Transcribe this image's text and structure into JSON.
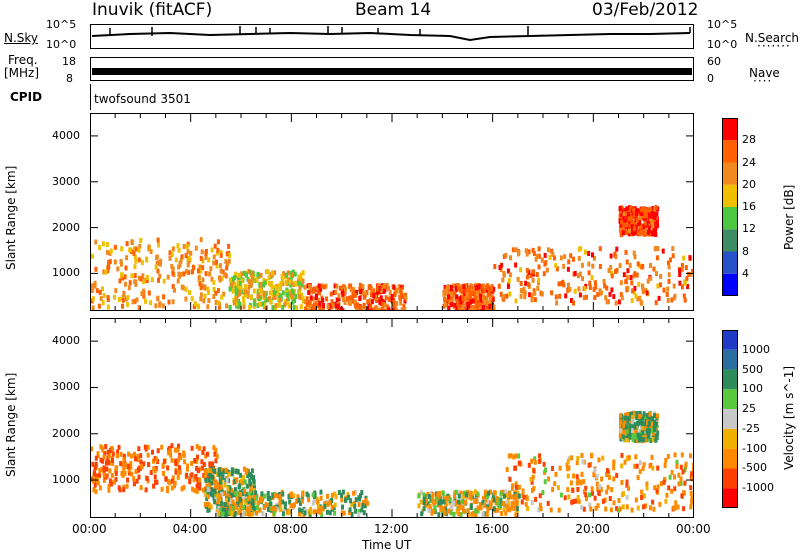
{
  "header": {
    "radar_title": "Inuvik (fitACF)",
    "beam": "Beam 14",
    "date": "03/Feb/2012"
  },
  "top_panels": {
    "nsky_label": "N.Sky",
    "nsearch_label": "N.Search",
    "nsky_tick_top": "10^5",
    "nsky_tick_bottom": "10^0",
    "nsearch_tick_top": "10^5",
    "nsearch_tick_bottom": "10^0",
    "freq_label_line1": "Freq.",
    "freq_label_line2": "[MHz]",
    "freq_tick_top": "18",
    "freq_tick_bottom": "8",
    "nave_label": "Nave",
    "nave_tick_top": "60",
    "nave_tick_bottom": "0",
    "cpid_label": "CPID",
    "cpid_value": "twofsound 3501"
  },
  "chart_data": [
    {
      "type": "heatmap",
      "title": "",
      "xlabel": "Time UT",
      "ylabel": "Slant Range [km]",
      "x_tick_labels": [
        "00:00",
        "04:00",
        "08:00",
        "12:00",
        "16:00",
        "20:00",
        "00:00"
      ],
      "x_range_hours": [
        0,
        24
      ],
      "y_range_km": [
        180,
        4500
      ],
      "y_ticks": [
        1000,
        2000,
        3000,
        4000
      ],
      "colorbar_label": "Power [dB]",
      "colorbar_ticks": [
        4,
        8,
        12,
        16,
        20,
        24,
        28
      ],
      "colorbar_range": [
        0,
        32
      ],
      "colors": [
        "#0000ff",
        "#2850c8",
        "#3d8c64",
        "#4cc840",
        "#f0c000",
        "#f08a20",
        "#ff6000",
        "#ff0000"
      ],
      "echo_regions": [
        {
          "t0": 0.0,
          "t1": 5.5,
          "r0": 300,
          "r1": 1800,
          "value": 22
        },
        {
          "t0": 5.5,
          "t1": 8.5,
          "r0": 300,
          "r1": 1100,
          "value": 18
        },
        {
          "t0": 8.5,
          "t1": 12.5,
          "r0": 200,
          "r1": 800,
          "value": 26
        },
        {
          "t0": 14.0,
          "t1": 16.0,
          "r0": 200,
          "r1": 800,
          "value": 26
        },
        {
          "t0": 16.0,
          "t1": 24.0,
          "r0": 400,
          "r1": 1600,
          "value": 24
        },
        {
          "t0": 21.0,
          "t1": 22.5,
          "r0": 1900,
          "r1": 2500,
          "value": 28
        }
      ]
    },
    {
      "type": "heatmap",
      "title": "",
      "xlabel": "Time UT",
      "ylabel": "Slant Range [km]",
      "x_tick_labels": [
        "00:00",
        "04:00",
        "08:00",
        "12:00",
        "16:00",
        "20:00",
        "00:00"
      ],
      "x_range_hours": [
        0,
        24
      ],
      "y_range_km": [
        180,
        4500
      ],
      "y_ticks": [
        1000,
        2000,
        3000,
        4000
      ],
      "colorbar_label": "Velocity [m s^-1]",
      "colorbar_ticks": [
        "1000",
        "500",
        "100",
        "25",
        "-25",
        "-100",
        "-500",
        "-1000"
      ],
      "colors": [
        "#1e3cc8",
        "#2a6ea0",
        "#2e8c5a",
        "#58c83c",
        "#c8c8c8",
        "#f0b000",
        "#ff8a00",
        "#ff4000",
        "#ff0000"
      ],
      "echo_regions": [
        {
          "t0": 0.0,
          "t1": 5.0,
          "r0": 800,
          "r1": 1800,
          "value": -500
        },
        {
          "t0": 4.5,
          "t1": 6.5,
          "r0": 300,
          "r1": 1300,
          "value": 100
        },
        {
          "t0": 5.0,
          "t1": 11.0,
          "r0": 300,
          "r1": 800,
          "value": 0
        },
        {
          "t0": 13.0,
          "t1": 17.0,
          "r0": 300,
          "r1": 800,
          "value": -100
        },
        {
          "t0": 16.5,
          "t1": 24.0,
          "r0": 400,
          "r1": 1600,
          "value": -300
        },
        {
          "t0": 21.0,
          "t1": 22.5,
          "r0": 1900,
          "r1": 2500,
          "value": 100
        }
      ]
    }
  ]
}
